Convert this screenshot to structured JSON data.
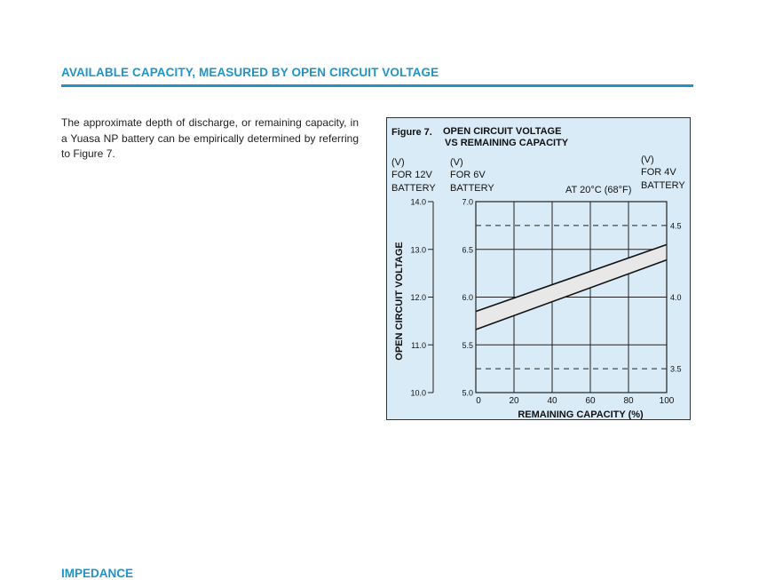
{
  "section": {
    "title": "AVAILABLE CAPACITY, MEASURED BY OPEN CIRCUIT VOLTAGE",
    "paragraph": "The approximate depth of discharge, or remaining capacity, in a Yuasa NP battery can be empirically determined by referring to Figure 7."
  },
  "next_section": {
    "title": "IMPEDANCE"
  },
  "colors": {
    "accent": "#1e94c8",
    "figure_background": "#d9ebf7",
    "band_fill": "#e8e8e8"
  },
  "chart_data": {
    "type": "area",
    "figure_label": "Figure 7.",
    "title": "OPEN CIRCUIT VOLTAGE",
    "subtitle": "VS REMAINING CAPACITY",
    "xlabel": "REMAINING CAPACITY (%)",
    "ylabel": "OPEN CIRCUIT VOLTAGE",
    "condition": "AT 20°C (68°F)",
    "xlim": [
      0,
      100
    ],
    "ylim": [
      5.0,
      7.0
    ],
    "x_ticks": [
      0,
      20,
      40,
      60,
      80,
      100
    ],
    "grid": true,
    "axes": {
      "left_12v": {
        "header": [
          "(V)",
          "FOR 12V",
          "BATTERY"
        ],
        "ticks": [
          14.0,
          13.0,
          12.0,
          11.0,
          10.0
        ]
      },
      "inner_6v": {
        "header": [
          "(V)",
          "FOR 6V",
          "BATTERY"
        ],
        "ticks": [
          7.0,
          6.5,
          6.0,
          5.5,
          5.0
        ]
      },
      "right_4v": {
        "header": [
          "(V)",
          "FOR 4V",
          "BATTERY"
        ],
        "ticks": [
          4.5,
          4.0,
          3.5
        ]
      }
    },
    "reference_lines_6v": [
      6.75,
      5.25
    ],
    "band": {
      "x": [
        0,
        100
      ],
      "upper_6v": [
        5.85,
        6.55
      ],
      "lower_6v": [
        5.66,
        6.39
      ]
    }
  }
}
